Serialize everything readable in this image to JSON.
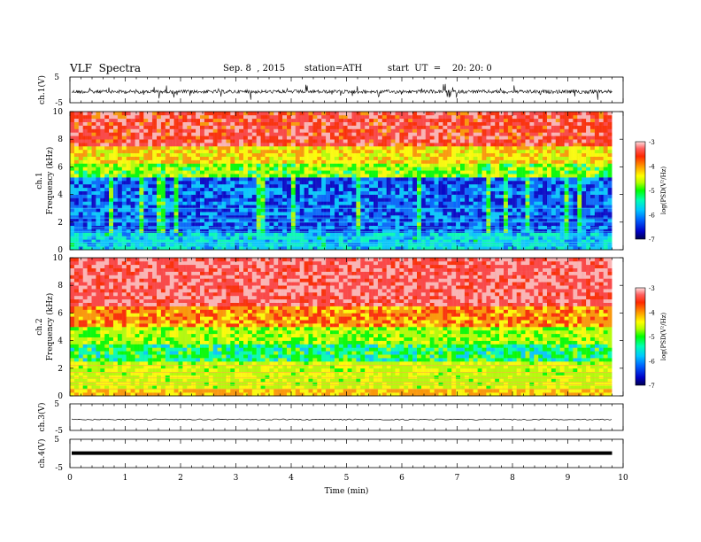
{
  "header": {
    "title": "VLF  Spectra",
    "date": "Sep. 8  , 2015",
    "station": "station=ATH",
    "start": "start  UT  =    20: 20: 0"
  },
  "chart_data": {
    "type": "heatmap",
    "x": {
      "label": "Time  (min)",
      "range": [
        0,
        10
      ],
      "ticks": [
        "0",
        "1",
        "2",
        "3",
        "4",
        "5",
        "6",
        "7",
        "8",
        "9",
        "10"
      ]
    },
    "panels": [
      {
        "name": "ch.1(V)",
        "kind": "waveform",
        "ylim": [
          -5,
          5
        ],
        "ticks": [
          "5",
          "-5"
        ],
        "amplitude": "moderate, mostly within -1.5..0.5 V with spikes"
      },
      {
        "name": "ch.1 Frequency  (kHz)",
        "kind": "spectrogram",
        "ylim": [
          0,
          10
        ],
        "ticks": [
          "0",
          "2",
          "4",
          "6",
          "8",
          "10"
        ],
        "colorbar": {
          "label": "log(PSD(V²/Hz)",
          "range": [
            -7,
            -3
          ],
          "ticks": [
            "-3",
            "-4",
            "-5",
            "-6",
            "-7"
          ]
        }
      },
      {
        "name": "ch.2 Frequency  (kHz)",
        "kind": "spectrogram",
        "ylim": [
          0,
          10
        ],
        "ticks": [
          "0",
          "2",
          "4",
          "6",
          "8",
          "10"
        ],
        "colorbar": {
          "label": "log(PSD(V²/Hz)",
          "range": [
            -7,
            -3
          ],
          "ticks": [
            "-3",
            "-4",
            "-5",
            "-6",
            "-7"
          ]
        }
      },
      {
        "name": "ch.3(V)",
        "kind": "waveform",
        "ylim": [
          -5,
          5
        ],
        "ticks": [
          "5",
          "-5"
        ],
        "amplitude": "flat, near -1 V"
      },
      {
        "name": "ch.4(V)",
        "kind": "waveform",
        "ylim": [
          -5,
          5
        ],
        "ticks": [
          "5",
          "-5"
        ],
        "amplitude": "flat thick line near 0 V"
      }
    ],
    "data_end_min": 9.8,
    "colorscale": [
      "#000050",
      "#0000c8",
      "#0064ff",
      "#00c8ff",
      "#00ffb4",
      "#00ff00",
      "#b4ff00",
      "#ffff00",
      "#ff9600",
      "#ff2800",
      "#ff4040",
      "#ffb4b4",
      "#ffffff"
    ]
  }
}
